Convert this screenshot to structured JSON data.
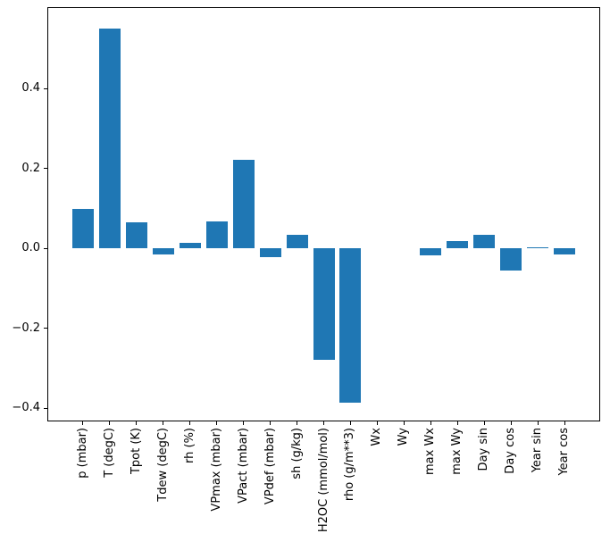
{
  "figure": {
    "background": "#ffffff",
    "axis_color": "#000000",
    "text_color": "#000000"
  },
  "chart_data": {
    "type": "bar",
    "title": "",
    "xlabel": "",
    "ylabel": "",
    "categories": [
      "p (mbar)",
      "T (degC)",
      "Tpot (K)",
      "Tdew (degC)",
      "rh (%)",
      "VPmax (mbar)",
      "VPact (mbar)",
      "VPdef (mbar)",
      "sh (g/kg)",
      "H2OC (mmol/mol)",
      "rho (g/m**3)",
      "Wx",
      "Wy",
      "max Wx",
      "max Wy",
      "Day sin",
      "Day cos",
      "Year sin",
      "Year cos"
    ],
    "values": [
      0.1,
      0.55,
      0.065,
      -0.016,
      0.013,
      0.068,
      0.221,
      -0.022,
      0.034,
      -0.278,
      -0.386,
      0.0,
      0.0,
      -0.017,
      0.019,
      0.035,
      -0.056,
      0.002,
      -0.016
    ],
    "bar_color": "#1f77b4",
    "ylim": [
      -0.433,
      0.604
    ],
    "yticks": [
      0.4,
      0.2,
      0.0,
      -0.2,
      -0.4
    ],
    "ytick_labels": [
      "0.4",
      "0.2",
      "0.0",
      "−0.2",
      "−0.4"
    ],
    "grid": false,
    "legend_position": "none",
    "tick_label_rotation": 90
  }
}
